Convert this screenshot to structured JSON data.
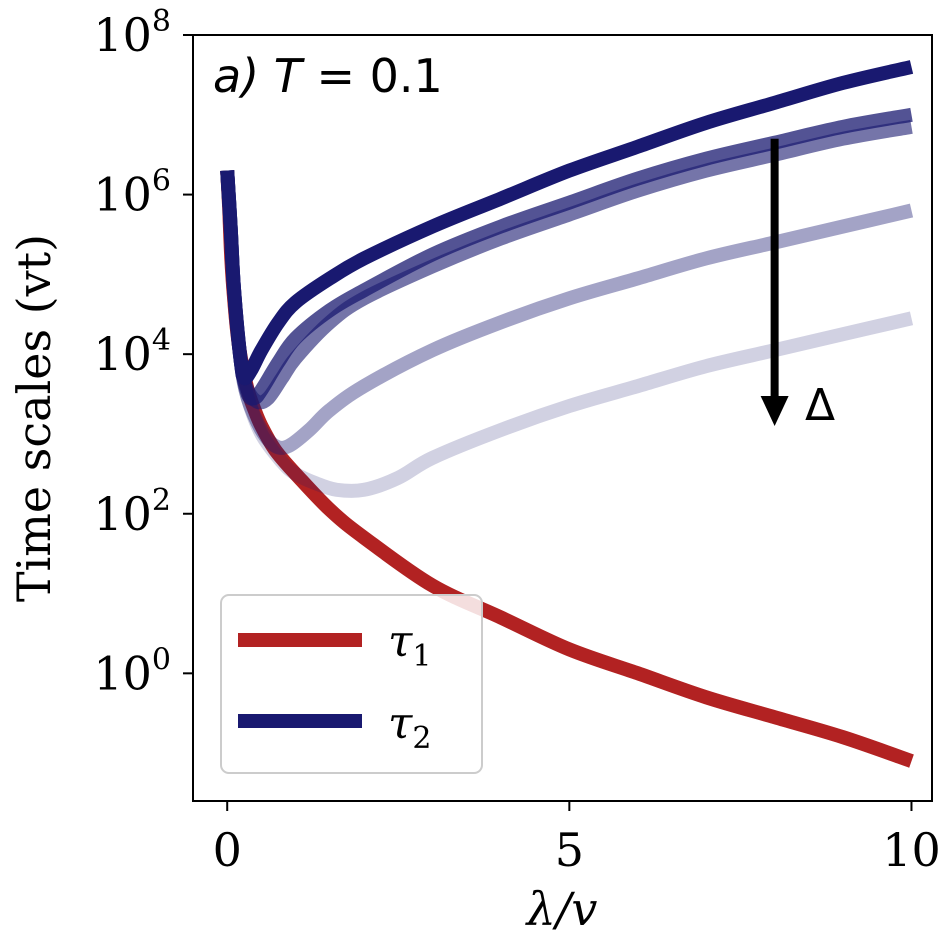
{
  "chart_data": {
    "type": "line",
    "title": "a) T = 0.1",
    "title_parts": {
      "prefix": "a) ",
      "var": "T",
      "rest": " = 0.1"
    },
    "xlabel": "λ/v",
    "ylabel": "Time scales (vt)",
    "xlim": [
      -0.5,
      10.3
    ],
    "ylim_log10": [
      -1.6,
      8.0
    ],
    "x_ticks": [
      0,
      5,
      10
    ],
    "x_tick_labels": [
      "0",
      "5",
      "10"
    ],
    "y_ticks_log10": [
      0,
      2,
      4,
      6,
      8
    ],
    "y_tick_labels": [
      "0",
      "2",
      "4",
      "6",
      "8"
    ],
    "y_tick_base": "10",
    "scale_y": "log",
    "grid": false,
    "legend": {
      "position": "lower-left",
      "entries": [
        {
          "label": "τ",
          "sub": "1",
          "color": "#b22222"
        },
        {
          "label": "τ",
          "sub": "2",
          "color": "#191970"
        }
      ]
    },
    "annotation": {
      "text": "Δ",
      "arrow_x": 8.0,
      "arrow_from_log10": 6.7,
      "arrow_to_log10": 3.1
    },
    "tau1": {
      "name": "τ1",
      "color": "#b22222",
      "x": [
        0.0,
        0.03,
        0.06,
        0.1,
        0.15,
        0.2,
        0.3,
        0.4,
        0.5,
        0.7,
        1.0,
        1.5,
        2.0,
        3.0,
        4.0,
        5.0,
        6.0,
        7.0,
        8.0,
        9.0,
        10.0
      ],
      "log10_y": [
        6.3,
        5.8,
        5.2,
        4.7,
        4.25,
        3.95,
        3.55,
        3.3,
        3.1,
        2.8,
        2.5,
        2.05,
        1.7,
        1.1,
        0.7,
        0.3,
        0.0,
        -0.3,
        -0.55,
        -0.8,
        -1.1
      ]
    },
    "tau2_series": [
      {
        "name": "τ2 (Δ step 1)",
        "opacity": 1.0,
        "x": [
          0.0,
          0.05,
          0.1,
          0.2,
          0.25,
          0.35,
          0.5,
          0.75,
          1.0,
          1.5,
          2.0,
          3.0,
          4.0,
          5.0,
          6.0,
          7.0,
          8.0,
          9.0,
          10.0
        ],
        "log10_y": [
          6.3,
          5.6,
          4.8,
          3.9,
          3.7,
          3.8,
          4.05,
          4.4,
          4.65,
          4.95,
          5.2,
          5.6,
          5.95,
          6.3,
          6.6,
          6.9,
          7.15,
          7.4,
          7.6
        ]
      },
      {
        "name": "τ2 (Δ step 2)",
        "opacity": 0.75,
        "x": [
          0.0,
          0.05,
          0.1,
          0.2,
          0.3,
          0.4,
          0.5,
          0.75,
          1.0,
          1.5,
          2.0,
          3.0,
          4.0,
          5.0,
          6.0,
          7.0,
          8.0,
          9.0,
          10.0
        ],
        "log10_y": [
          6.3,
          5.6,
          4.8,
          3.9,
          3.5,
          3.45,
          3.55,
          3.9,
          4.2,
          4.55,
          4.8,
          5.25,
          5.6,
          5.9,
          6.2,
          6.45,
          6.65,
          6.85,
          7.0
        ]
      },
      {
        "name": "τ2 (Δ step 3)",
        "opacity": 0.6,
        "x": [
          0.0,
          0.05,
          0.1,
          0.2,
          0.3,
          0.45,
          0.6,
          0.8,
          1.0,
          1.5,
          2.0,
          3.0,
          4.0,
          5.0,
          6.0,
          7.0,
          8.0,
          9.0,
          10.0
        ],
        "log10_y": [
          6.3,
          5.6,
          4.8,
          3.9,
          3.55,
          3.4,
          3.45,
          3.7,
          3.95,
          4.4,
          4.7,
          5.1,
          5.45,
          5.75,
          6.05,
          6.3,
          6.5,
          6.7,
          6.85
        ]
      },
      {
        "name": "τ2 (Δ step 4)",
        "opacity": 0.4,
        "x": [
          0.0,
          0.05,
          0.1,
          0.2,
          0.3,
          0.5,
          0.7,
          0.9,
          1.2,
          1.5,
          2.0,
          3.0,
          4.0,
          5.0,
          6.0,
          7.0,
          8.0,
          9.0,
          10.0
        ],
        "log10_y": [
          6.3,
          5.6,
          4.8,
          3.9,
          3.45,
          3.05,
          2.85,
          2.85,
          3.05,
          3.3,
          3.6,
          4.05,
          4.4,
          4.7,
          4.95,
          5.2,
          5.4,
          5.6,
          5.8
        ]
      },
      {
        "name": "τ2 (Δ step 5)",
        "opacity": 0.2,
        "x": [
          0.0,
          0.05,
          0.1,
          0.2,
          0.3,
          0.5,
          0.8,
          1.0,
          1.3,
          1.6,
          2.0,
          2.5,
          3.0,
          4.0,
          5.0,
          6.0,
          7.0,
          8.0,
          9.0,
          10.0
        ],
        "log10_y": [
          6.3,
          5.6,
          4.8,
          3.9,
          3.45,
          3.0,
          2.65,
          2.5,
          2.38,
          2.3,
          2.3,
          2.45,
          2.7,
          3.05,
          3.35,
          3.6,
          3.85,
          4.05,
          4.25,
          4.45
        ]
      }
    ],
    "tau2_color": "#191970"
  }
}
